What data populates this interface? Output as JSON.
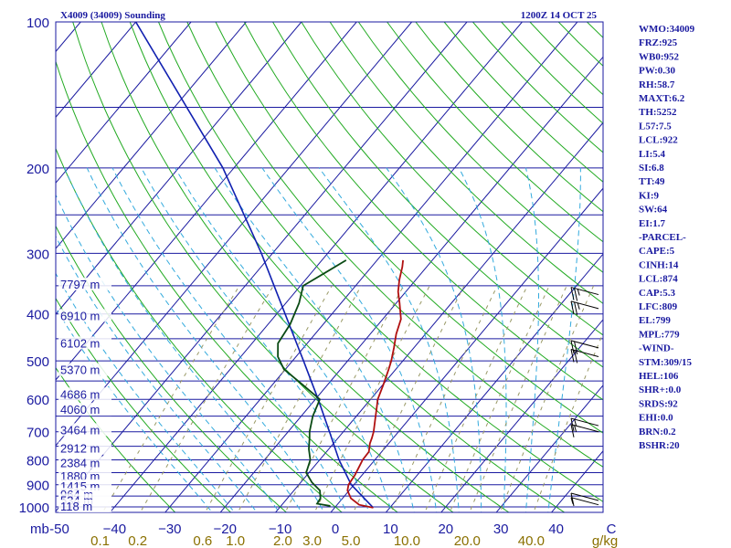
{
  "chart_data": {
    "type": "skew-t",
    "title": "X4009 (34009) Sounding",
    "time": "1200Z 14 OCT 25",
    "units_label": "mb",
    "mixing_ratio_units": "g/kg",
    "pressure_levels": [
      100,
      200,
      300,
      400,
      500,
      600,
      700,
      800,
      900,
      1000
    ],
    "pressure_range": [
      100,
      1050
    ],
    "temperature_ticks": [
      {
        "value": -50,
        "label": "-50"
      },
      {
        "value": -40,
        "label": "−40"
      },
      {
        "value": -30,
        "label": "−30"
      },
      {
        "value": -20,
        "label": "−20"
      },
      {
        "value": -10,
        "label": "−10"
      },
      {
        "value": 0,
        "label": "0"
      },
      {
        "value": 10,
        "label": "10"
      },
      {
        "value": 20,
        "label": "20"
      },
      {
        "value": 30,
        "label": "30"
      },
      {
        "value": 40,
        "label": "40"
      },
      {
        "value": 50,
        "label": "C"
      }
    ],
    "mixing_ratio_labels": [
      {
        "value": 0.1,
        "label": "0.1"
      },
      {
        "value": 0.2,
        "label": "0.2"
      },
      {
        "value": 0.6,
        "label": "0.6"
      },
      {
        "value": 1.0,
        "label": "1.0"
      },
      {
        "value": 2.0,
        "label": "2.0"
      },
      {
        "value": 3.0,
        "label": "3.0"
      },
      {
        "value": 5.0,
        "label": "5.0"
      },
      {
        "value": 10.0,
        "label": "10.0"
      },
      {
        "value": 20.0,
        "label": "20.0"
      },
      {
        "value": 40.0,
        "label": "40.0"
      }
    ],
    "height_labels": [
      {
        "p": 353,
        "label": "7797 m"
      },
      {
        "p": 410,
        "label": "6910 m"
      },
      {
        "p": 467,
        "label": "6102 m"
      },
      {
        "p": 530,
        "label": "5370 m"
      },
      {
        "p": 595,
        "label": "4686 m"
      },
      {
        "p": 640,
        "label": "4060 m"
      },
      {
        "p": 705,
        "label": "3464 m"
      },
      {
        "p": 770,
        "label": "2912 m"
      },
      {
        "p": 825,
        "label": "2384 m"
      },
      {
        "p": 878,
        "label": "1880 m"
      },
      {
        "p": 920,
        "label": "1415 m"
      },
      {
        "p": 958,
        "label": "964 m"
      },
      {
        "p": 985,
        "label": "534 m"
      },
      {
        "p": 1013,
        "label": "118 m"
      }
    ],
    "temperature_profile": [
      {
        "p": 1004,
        "t": 7.0
      },
      {
        "p": 990,
        "t": 4.0
      },
      {
        "p": 960,
        "t": 1.5
      },
      {
        "p": 925,
        "t": -0.3
      },
      {
        "p": 900,
        "t": -1.0
      },
      {
        "p": 860,
        "t": -1.3
      },
      {
        "p": 820,
        "t": -1.9
      },
      {
        "p": 800,
        "t": -2.2
      },
      {
        "p": 770,
        "t": -2.3
      },
      {
        "p": 740,
        "t": -3.4
      },
      {
        "p": 720,
        "t": -3.9
      },
      {
        "p": 700,
        "t": -4.5
      },
      {
        "p": 660,
        "t": -6.1
      },
      {
        "p": 620,
        "t": -7.8
      },
      {
        "p": 600,
        "t": -8.7
      },
      {
        "p": 560,
        "t": -9.9
      },
      {
        "p": 520,
        "t": -11.3
      },
      {
        "p": 500,
        "t": -12.1
      },
      {
        "p": 470,
        "t": -13.6
      },
      {
        "p": 440,
        "t": -15.3
      },
      {
        "p": 410,
        "t": -16.7
      },
      {
        "p": 380,
        "t": -19.4
      },
      {
        "p": 360,
        "t": -21.4
      },
      {
        "p": 340,
        "t": -23.0
      },
      {
        "p": 320,
        "t": -24.4
      },
      {
        "p": 310,
        "t": -25.3
      }
    ],
    "dewpoint_profile": [
      {
        "p": 1000,
        "dp": -1.0
      },
      {
        "p": 995,
        "dp": -1.2
      },
      {
        "p": 985,
        "dp": -3.8
      },
      {
        "p": 960,
        "dp": -4.0
      },
      {
        "p": 925,
        "dp": -5.3
      },
      {
        "p": 890,
        "dp": -8.0
      },
      {
        "p": 850,
        "dp": -10.5
      },
      {
        "p": 800,
        "dp": -11.7
      },
      {
        "p": 760,
        "dp": -13.6
      },
      {
        "p": 720,
        "dp": -15.2
      },
      {
        "p": 700,
        "dp": -16.1
      },
      {
        "p": 650,
        "dp": -17.9
      },
      {
        "p": 600,
        "dp": -19.2
      },
      {
        "p": 560,
        "dp": -24.5
      },
      {
        "p": 520,
        "dp": -30.3
      },
      {
        "p": 490,
        "dp": -33.3
      },
      {
        "p": 460,
        "dp": -35.3
      },
      {
        "p": 420,
        "dp": -36.0
      },
      {
        "p": 380,
        "dp": -37.6
      },
      {
        "p": 350,
        "dp": -39.5
      },
      {
        "p": 330,
        "dp": -37.6
      },
      {
        "p": 310,
        "dp": -35.6
      }
    ],
    "parcel_path": [
      {
        "p": 1004,
        "t": 7.0
      },
      {
        "p": 900,
        "t": -0.5
      },
      {
        "p": 800,
        "t": -6.5
      },
      {
        "p": 700,
        "t": -12.5
      },
      {
        "p": 600,
        "t": -19.5
      },
      {
        "p": 500,
        "t": -28.0
      },
      {
        "p": 400,
        "t": -38.5
      },
      {
        "p": 300,
        "t": -52.0
      },
      {
        "p": 200,
        "t": -72.0
      },
      {
        "p": 100,
        "t": -110.0
      }
    ],
    "wind_barbs": [
      {
        "p": 990,
        "dir": 240,
        "spd": 5
      },
      {
        "p": 970,
        "dir": 250,
        "spd": 10
      },
      {
        "p": 700,
        "dir": 280,
        "spd": 15
      },
      {
        "p": 680,
        "dir": 285,
        "spd": 15
      },
      {
        "p": 490,
        "dir": 300,
        "spd": 20
      },
      {
        "p": 470,
        "dir": 300,
        "spd": 20
      },
      {
        "p": 390,
        "dir": 300,
        "spd": 25
      },
      {
        "p": 365,
        "dir": 300,
        "spd": 25
      }
    ]
  },
  "indices": [
    "WMO:34009",
    "FRZ:925",
    "WB0:952",
    "PW:0.30",
    "RH:58.7",
    "MAXT:6.2",
    "TH:5252",
    "L57:7.5",
    "LCL:922",
    "LI:5.4",
    "SI:6.8",
    "TT:49",
    "KI:9",
    "SW:64",
    "EI:1.7",
    "-PARCEL-",
    "CAPE:5",
    "CINH:14",
    "LCL:874",
    "CAP:5.3",
    "LFC:809",
    "EL:799",
    "MPL:779",
    "-WIND-",
    "STM:309/15",
    "HEL:106",
    "SHR+:0.0",
    "SRDS:92",
    "EHI:0.0",
    "BRN:0.2",
    "BSHR:20"
  ],
  "colors": {
    "isobar": "#1a1aa0",
    "isotherm": "#1a1aa0",
    "dry_adiabat": "#22aa22",
    "moist_adiabat": "#33aadd",
    "mixing_ratio": "#999966",
    "temperature": "#b01010",
    "dewpoint": "#0a4a14",
    "parcel": "#1020b0",
    "wind": "#000000",
    "text": "#1a1aa0"
  }
}
